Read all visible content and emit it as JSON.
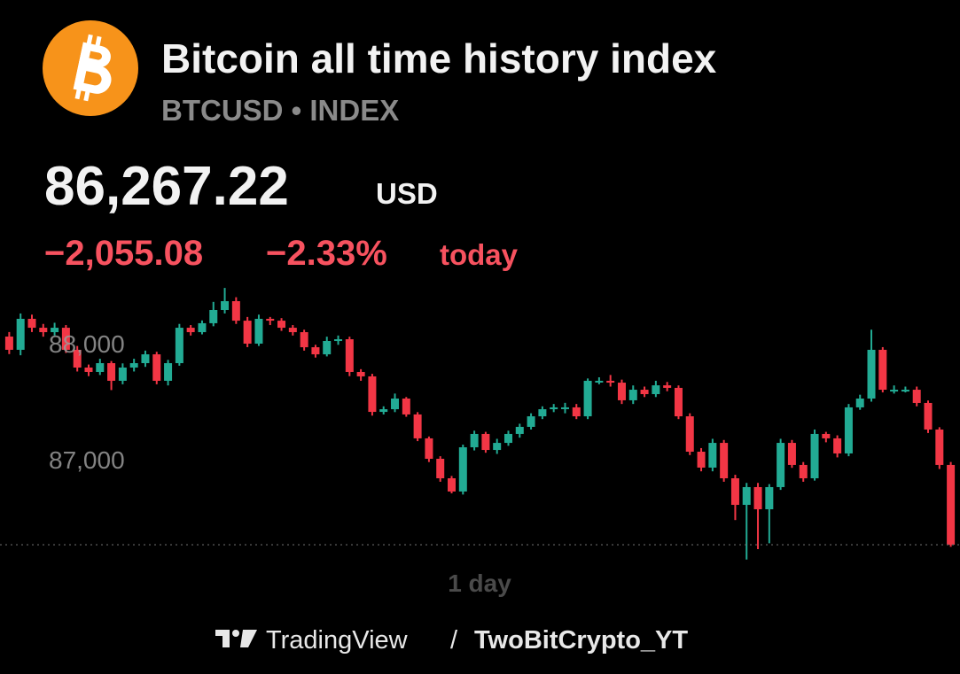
{
  "header": {
    "title": "Bitcoin all time history index",
    "subtitle": "BTCUSD • INDEX",
    "price": "86,267.22",
    "currency": "USD",
    "change": "−2,055.08",
    "change_pct": "−2.33%",
    "period": "today"
  },
  "chart_data": {
    "type": "candlestick",
    "x_label": "1 day",
    "up_color": "#22ab94",
    "down_color": "#f23645",
    "ylim": [
      86077,
      88519
    ],
    "yticks": [
      {
        "value": 87000,
        "label": "87,000"
      },
      {
        "value": 88000,
        "label": "88,000"
      }
    ],
    "open": [
      88061,
      87947,
      88214,
      88137,
      88099,
      88137,
      87947,
      87794,
      87756,
      87832,
      87680,
      87794,
      87832,
      87908,
      87680,
      87832,
      88137,
      88099,
      88176,
      88290,
      88366,
      88198,
      88000,
      88214,
      88198,
      88137,
      88099,
      87969,
      87908,
      88023,
      88038,
      87756,
      87718,
      87412,
      87435,
      87527,
      87390,
      87184,
      87008,
      86840,
      86726,
      87107,
      87222,
      87084,
      87145,
      87222,
      87283,
      87374,
      87435,
      87451,
      87451,
      87374,
      87680,
      87680,
      87664,
      87512,
      87603,
      87565,
      87641,
      87619,
      87374,
      87069,
      86932,
      87145,
      86840,
      86611,
      86764,
      86573,
      86764,
      87145,
      86955,
      86840,
      87222,
      87184,
      87054,
      87451,
      87527,
      87947,
      87603,
      87603,
      87603,
      87489,
      87260,
      86955
    ],
    "high": [
      88100,
      88260,
      88250,
      88170,
      88180,
      88160,
      87980,
      87820,
      87870,
      87850,
      87830,
      87870,
      87940,
      87930,
      87860,
      88170,
      88160,
      88200,
      88360,
      88480,
      88400,
      88230,
      88250,
      88230,
      88220,
      88160,
      88120,
      87990,
      88060,
      88070,
      88060,
      87780,
      87740,
      87460,
      87570,
      87540,
      87410,
      87200,
      87030,
      86860,
      87130,
      87250,
      87240,
      87180,
      87250,
      87310,
      87400,
      87460,
      87480,
      87490,
      87480,
      87700,
      87710,
      87730,
      87690,
      87640,
      87630,
      87680,
      87670,
      87640,
      87400,
      87100,
      87180,
      87170,
      86870,
      86800,
      86800,
      86790,
      87180,
      87170,
      86980,
      87260,
      87240,
      87210,
      87480,
      87560,
      88120,
      87970,
      87640,
      87630,
      87630,
      87510,
      87280,
      86980
    ],
    "low": [
      87910,
      87900,
      88100,
      88060,
      88070,
      87920,
      87760,
      87720,
      87730,
      87600,
      87650,
      87760,
      87800,
      87650,
      87640,
      87810,
      88070,
      88080,
      88150,
      88260,
      88170,
      87970,
      87980,
      88160,
      88110,
      88070,
      87940,
      87880,
      87890,
      87990,
      87720,
      87680,
      87380,
      87390,
      87410,
      87370,
      87160,
      86980,
      86810,
      86710,
      86700,
      87080,
      87060,
      87050,
      87120,
      87190,
      87260,
      87350,
      87410,
      87400,
      87350,
      87350,
      87650,
      87630,
      87480,
      87480,
      87540,
      87540,
      87590,
      87350,
      87040,
      86900,
      86900,
      86810,
      86480,
      86140,
      86230,
      86280,
      86740,
      86930,
      86810,
      86820,
      87150,
      87020,
      87030,
      87430,
      87500,
      87580,
      87570,
      87580,
      87460,
      87230,
      86920,
      86250
    ],
    "close": [
      87947,
      88214,
      88137,
      88099,
      88137,
      87947,
      87794,
      87756,
      87832,
      87680,
      87794,
      87832,
      87908,
      87680,
      87832,
      88137,
      88099,
      88176,
      88290,
      88366,
      88198,
      88000,
      88214,
      88198,
      88137,
      88099,
      87969,
      87908,
      88023,
      88038,
      87756,
      87718,
      87412,
      87435,
      87527,
      87390,
      87184,
      87008,
      86840,
      86726,
      87107,
      87222,
      87084,
      87145,
      87222,
      87283,
      87374,
      87435,
      87451,
      87451,
      87374,
      87680,
      87680,
      87664,
      87512,
      87603,
      87565,
      87641,
      87619,
      87374,
      87069,
      86932,
      87145,
      86840,
      86611,
      86764,
      86573,
      86764,
      87145,
      86955,
      86840,
      87222,
      87184,
      87054,
      87451,
      87527,
      87947,
      87603,
      87603,
      87603,
      87489,
      87260,
      86955,
      86267.22
    ]
  },
  "footer": {
    "brand": "TradingView",
    "separator": "/",
    "author": "TwoBitCrypto_YT"
  }
}
